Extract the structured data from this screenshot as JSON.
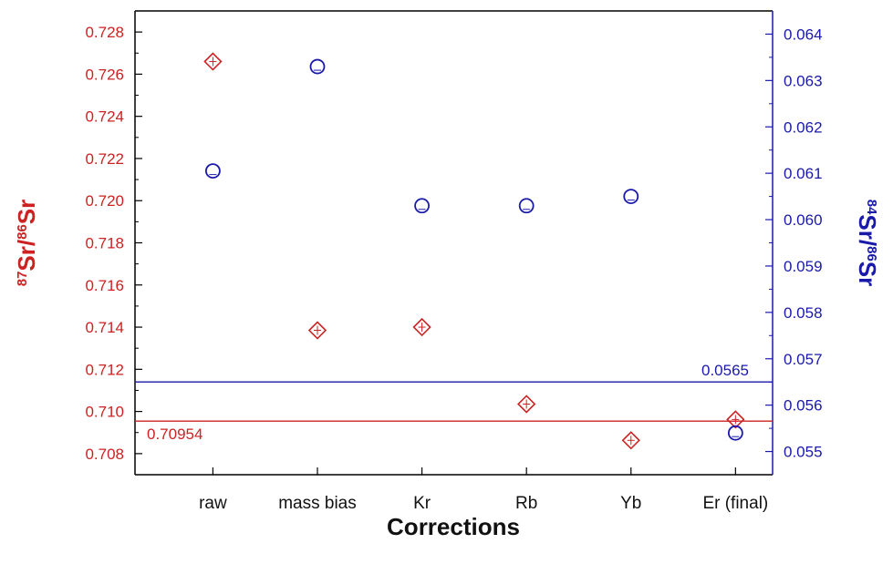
{
  "chart_data": {
    "type": "scatter",
    "xlabel": "Corrections",
    "categories": [
      "raw",
      "mass bias",
      "Kr",
      "Rb",
      "Yb",
      "Er (final)"
    ],
    "y_left": {
      "label_sup": "87",
      "label_main": "Sr/",
      "label_sup2": "86",
      "label_tail": "Sr",
      "color": "#cc2222",
      "ylim": [
        0.707,
        0.729
      ],
      "ticks": [
        "0.708",
        "0.710",
        "0.712",
        "0.714",
        "0.716",
        "0.718",
        "0.720",
        "0.722",
        "0.724",
        "0.726",
        "0.728"
      ]
    },
    "y_right": {
      "label_sup": "84",
      "label_main": "Sr/",
      "label_sup2": "86",
      "label_tail": "Sr",
      "color": "#1a1aaa",
      "ylim": [
        0.0545,
        0.0645
      ],
      "ticks": [
        "0.055",
        "0.056",
        "0.057",
        "0.058",
        "0.059",
        "0.060",
        "0.061",
        "0.062",
        "0.063",
        "0.064"
      ]
    },
    "series": [
      {
        "axis": "left",
        "marker": "diamond",
        "color": "#cc2222",
        "values": [
          0.7266,
          0.71385,
          0.714,
          0.71035,
          0.70863,
          0.70962
        ]
      },
      {
        "axis": "right",
        "marker": "circle",
        "color": "#1a1aaa",
        "values": [
          0.06105,
          0.0633,
          0.0603,
          0.0603,
          0.0605,
          0.0554
        ]
      }
    ],
    "reference_lines": [
      {
        "axis": "left",
        "value": 0.70954,
        "label": "0.70954",
        "color": "#cc2222"
      },
      {
        "axis": "right",
        "value": 0.0565,
        "label": "0.0565",
        "color": "#1a1aaa"
      }
    ],
    "grid": false,
    "legend": "none"
  }
}
